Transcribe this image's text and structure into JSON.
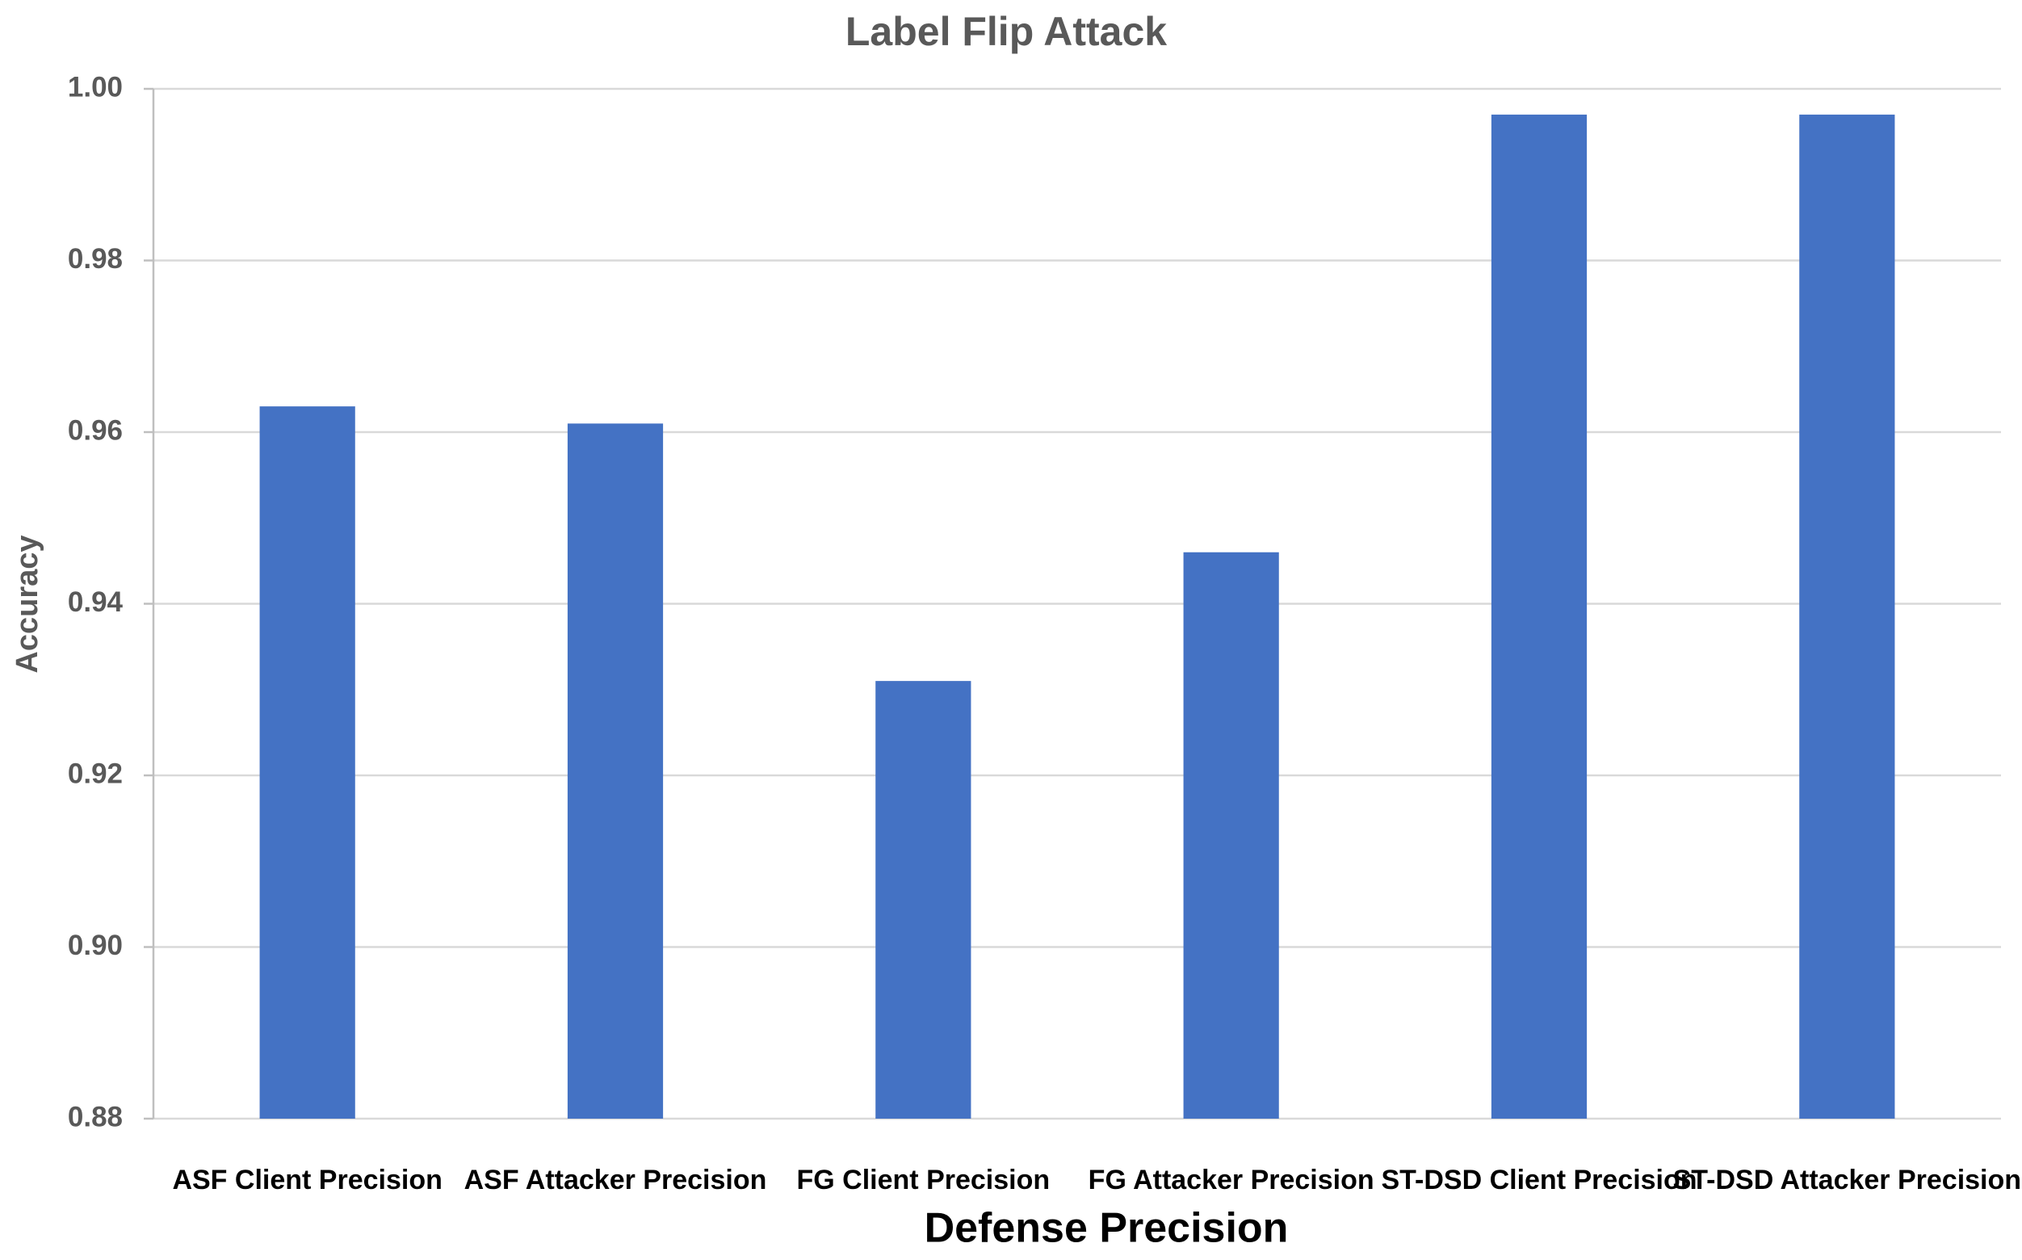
{
  "chart_data": {
    "type": "bar",
    "title": "Label Flip Attack",
    "x_label": "Defense Precision",
    "y_label": "Accuracy",
    "categories": [
      "ASF Client Precision",
      "ASF Attacker Precision",
      "FG Client Precision",
      "FG Attacker Precision",
      "ST-DSD Client Precision",
      "ST-DSD Attacker Precision"
    ],
    "values": [
      0.963,
      0.961,
      0.931,
      0.946,
      0.997,
      0.997
    ],
    "color": "#4472c4",
    "ylim": [
      0.88,
      1.0
    ],
    "yticks": [
      0.88,
      {
        "value": 0.9,
        "label": "0.90"
      },
      0.92,
      0.94,
      0.96,
      0.98,
      {
        "value": 1.0,
        "label": "1.00"
      }
    ],
    "grid": true
  }
}
